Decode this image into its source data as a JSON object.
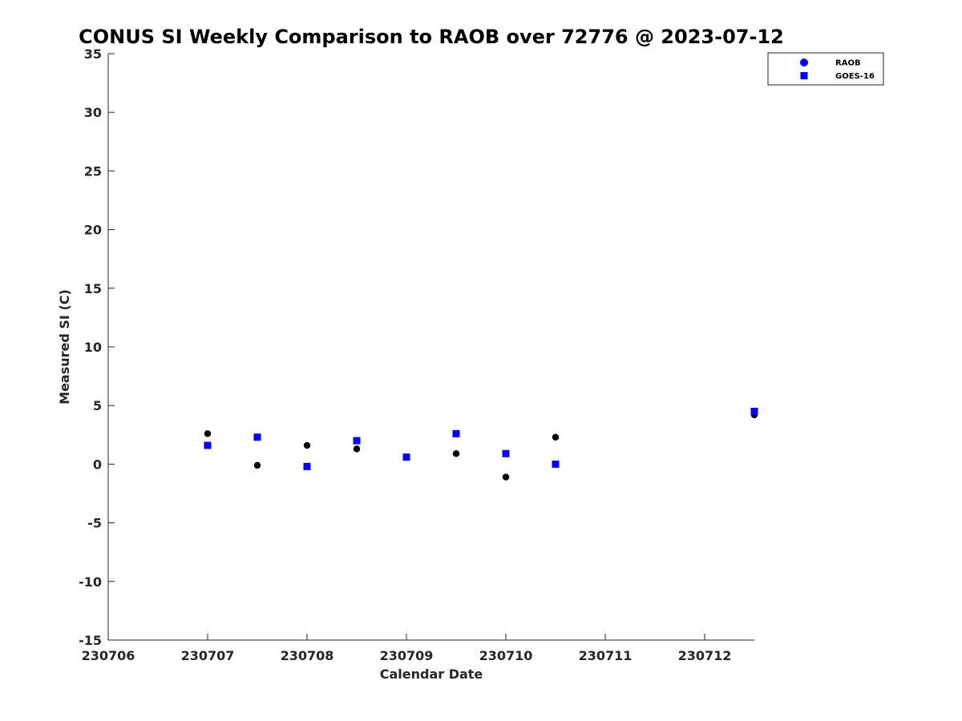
{
  "chart_data": {
    "type": "scatter",
    "title": "CONUS SI Weekly Comparison to RAOB over 72776 @ 2023-07-12",
    "xlabel": "Calendar Date",
    "ylabel": "Measured SI (C)",
    "xlim": [
      "230706",
      "230712 12Z"
    ],
    "ylim": [
      -15,
      35
    ],
    "x_ticks": [
      "230706",
      "230707",
      "230708",
      "230709",
      "230710",
      "230711",
      "230712"
    ],
    "y_ticks": [
      -15,
      -10,
      -5,
      0,
      5,
      10,
      15,
      20,
      25,
      30,
      35
    ],
    "grid": false,
    "legend_position": "top-right",
    "series": [
      {
        "name": "RAOB",
        "marker": "circle",
        "legend_color": "#0000ff",
        "color": "#000000",
        "points": [
          {
            "x": "230707 00Z",
            "y": 2.6
          },
          {
            "x": "230707 12Z",
            "y": -0.1
          },
          {
            "x": "230708 00Z",
            "y": 1.6
          },
          {
            "x": "230708 12Z",
            "y": 1.3
          },
          {
            "x": "230709 00Z",
            "y": 0.6
          },
          {
            "x": "230709 12Z",
            "y": 0.9
          },
          {
            "x": "230710 00Z",
            "y": -1.1
          },
          {
            "x": "230710 12Z",
            "y": 2.3
          },
          {
            "x": "230712 12Z",
            "y": 4.2
          }
        ]
      },
      {
        "name": "GOES-16",
        "marker": "square",
        "color": "#0000ff",
        "points": [
          {
            "x": "230707 00Z",
            "y": 1.6
          },
          {
            "x": "230707 12Z",
            "y": 2.3
          },
          {
            "x": "230708 00Z",
            "y": -0.2
          },
          {
            "x": "230708 12Z",
            "y": 2.0
          },
          {
            "x": "230709 00Z",
            "y": 0.6
          },
          {
            "x": "230709 12Z",
            "y": 2.6
          },
          {
            "x": "230710 00Z",
            "y": 0.9
          },
          {
            "x": "230710 12Z",
            "y": 0.0
          },
          {
            "x": "230712 12Z",
            "y": 4.5
          }
        ]
      }
    ]
  }
}
